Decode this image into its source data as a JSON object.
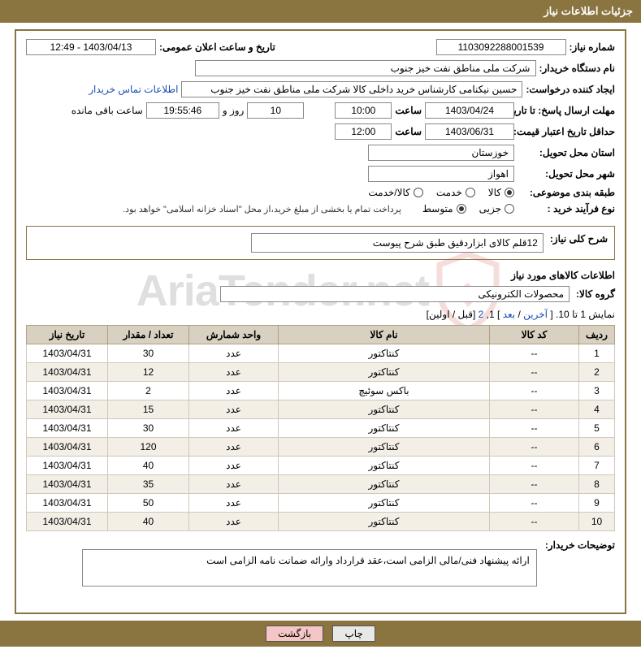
{
  "header": {
    "title": "جزئیات اطلاعات نیاز"
  },
  "fields": {
    "need_number_label": "شماره نیاز:",
    "need_number": "1103092288001539",
    "announce_label": "تاریخ و ساعت اعلان عمومی:",
    "announce_value": "1403/04/13 - 12:49",
    "buyer_org_label": "نام دستگاه خریدار:",
    "buyer_org": "شرکت ملی مناطق نفت خیز جنوب",
    "requester_label": "ایجاد کننده درخواست:",
    "requester": "حسین  نیکنامی  کارشناس خرید داخلی کالا شرکت ملی مناطق نفت خیز جنوب",
    "contact_link": "اطلاعات تماس خریدار",
    "deadline_label": "مهلت ارسال پاسخ: تا تاریخ:",
    "deadline_date": "1403/04/24",
    "time_label": "ساعت",
    "deadline_time": "10:00",
    "days_value": "10",
    "days_and_label": "روز و",
    "countdown": "19:55:46",
    "remaining_label": "ساعت باقی مانده",
    "validity_label": "حداقل تاریخ اعتبار قیمت: تا تاریخ:",
    "validity_date": "1403/06/31",
    "validity_time": "12:00",
    "province_label": "استان محل تحویل:",
    "province": "خوزستان",
    "city_label": "شهر محل تحویل:",
    "city": "اهواز",
    "category_label": "طبقه بندی موضوعی:",
    "process_label": "نوع فرآیند خرید :",
    "process_note": "پرداخت تمام یا بخشی از مبلغ خرید،از محل \"اسناد خزانه اسلامی\" خواهد بود.",
    "categories": {
      "goods": "کالا",
      "service": "خدمت",
      "goods_service": "کالا/خدمت",
      "selected": "goods"
    },
    "process_types": {
      "partial": "جزیی",
      "medium": "متوسط",
      "selected": "medium"
    },
    "overview_label": "شرح کلی نیاز:",
    "overview_text": "12قلم کالای ابزاردقیق طبق شرح پیوست",
    "goods_section_title": "اطلاعات کالاهای مورد نیاز",
    "group_label": "گروه کالا:",
    "group_value": "محصولات الکترونیکی",
    "pager_prefix": "نمایش 1 تا 10. [ ",
    "pager_last": "آخرین",
    "pager_sep1": " / ",
    "pager_next": "بعد",
    "pager_mid": " ] 1, ",
    "pager_p2": "2",
    "pager_suffix": " [قبل / اولین]",
    "buyer_notes_label": "توضیحات خریدار:",
    "buyer_notes": "ارائه پیشنهاد فنی/مالی الزامی است،عقد قرارداد وارائه ضمانت نامه الزامی است"
  },
  "table": {
    "columns": [
      "ردیف",
      "کد کالا",
      "نام کالا",
      "واحد شمارش",
      "تعداد / مقدار",
      "تاریخ نیاز"
    ],
    "col_widths": [
      "44px",
      "110px",
      "auto",
      "110px",
      "100px",
      "100px"
    ],
    "header_bg": "#d8d0c0",
    "rows": [
      [
        "1",
        "--",
        "کنتاکتور",
        "عدد",
        "30",
        "1403/04/31"
      ],
      [
        "2",
        "--",
        "کنتاکتور",
        "عدد",
        "12",
        "1403/04/31"
      ],
      [
        "3",
        "--",
        "باکس سوئیچ",
        "عدد",
        "2",
        "1403/04/31"
      ],
      [
        "4",
        "--",
        "کنتاکتور",
        "عدد",
        "15",
        "1403/04/31"
      ],
      [
        "5",
        "--",
        "کنتاکتور",
        "عدد",
        "30",
        "1403/04/31"
      ],
      [
        "6",
        "--",
        "کنتاکتور",
        "عدد",
        "120",
        "1403/04/31"
      ],
      [
        "7",
        "--",
        "کنتاکتور",
        "عدد",
        "40",
        "1403/04/31"
      ],
      [
        "8",
        "--",
        "کنتاکتور",
        "عدد",
        "35",
        "1403/04/31"
      ],
      [
        "9",
        "--",
        "کنتاکتور",
        "عدد",
        "50",
        "1403/04/31"
      ],
      [
        "10",
        "--",
        "کنتاکتور",
        "عدد",
        "40",
        "1403/04/31"
      ]
    ]
  },
  "buttons": {
    "print": "چاپ",
    "back": "بازگشت"
  },
  "watermark": {
    "text": "AriaTender.net",
    "shield_color": "#c94a3b"
  }
}
